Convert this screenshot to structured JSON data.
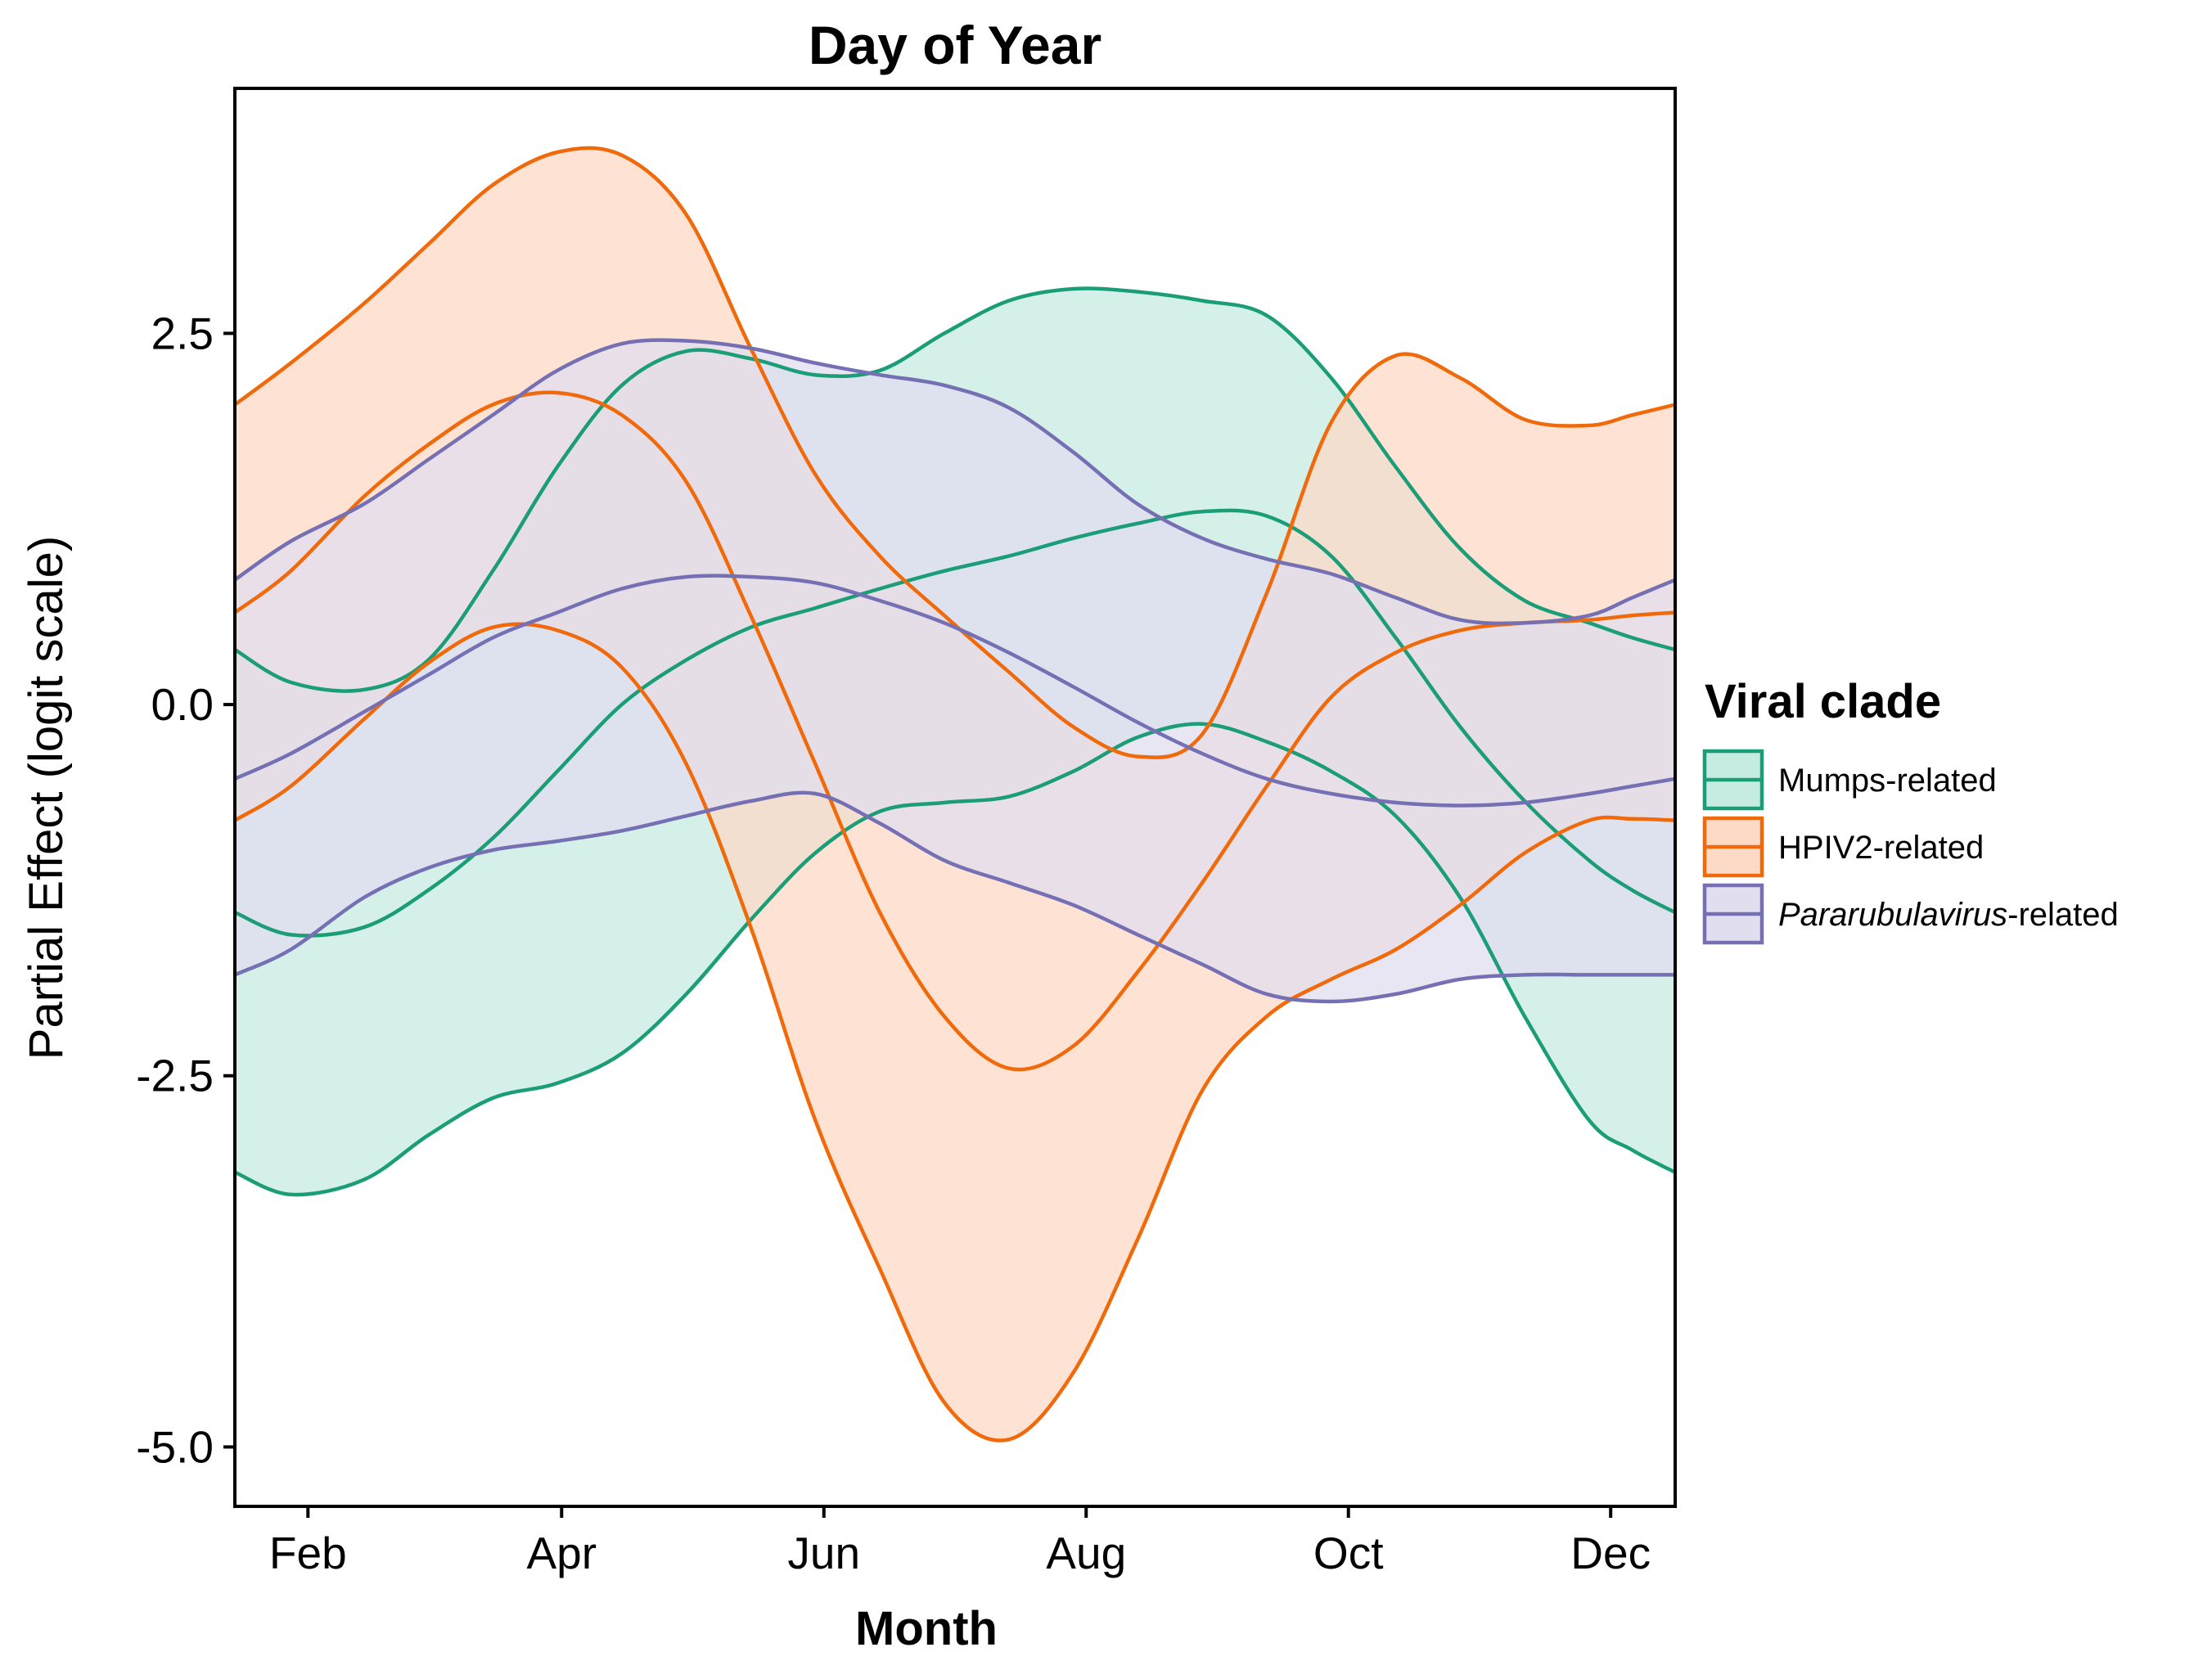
{
  "chart_data": {
    "type": "area",
    "title": "Day of Year",
    "xlabel": "Month",
    "ylabel": "Partial Effect (logit scale)",
    "xlim": [
      15,
      350
    ],
    "ylim": [
      -5.4,
      4.15
    ],
    "x_ticks": [
      {
        "value": 32,
        "label": "Feb"
      },
      {
        "value": 91,
        "label": "Apr"
      },
      {
        "value": 152,
        "label": "Jun"
      },
      {
        "value": 213,
        "label": "Aug"
      },
      {
        "value": 274,
        "label": "Oct"
      },
      {
        "value": 335,
        "label": "Dec"
      }
    ],
    "y_ticks": [
      {
        "value": 2.5,
        "label": "2.5"
      },
      {
        "value": 0.0,
        "label": "0.0"
      },
      {
        "value": -2.5,
        "label": "-2.5"
      },
      {
        "value": -5.0,
        "label": "-5.0"
      }
    ],
    "legend": {
      "title": "Viral clade",
      "position": "right",
      "entries": [
        {
          "prefix": "",
          "italic": "",
          "suffix": "Mumps-related"
        },
        {
          "prefix": "",
          "italic": "",
          "suffix": "HPIV2-related"
        },
        {
          "prefix": "",
          "italic": "Pararubulavirus",
          "suffix": "-related"
        }
      ]
    },
    "series": [
      {
        "name": "Mumps-related",
        "color": "#1B9E77",
        "fill": "#C6EBE1",
        "x": [
          15,
          28,
          45,
          60,
          75,
          90,
          105,
          120,
          135,
          150,
          165,
          180,
          195,
          210,
          225,
          240,
          255,
          270,
          285,
          300,
          315,
          330,
          340,
          350
        ],
        "upper": [
          0.37,
          0.15,
          0.1,
          0.3,
          0.9,
          1.6,
          2.15,
          2.38,
          2.33,
          2.22,
          2.25,
          2.5,
          2.72,
          2.8,
          2.78,
          2.72,
          2.62,
          2.2,
          1.6,
          1.05,
          0.7,
          0.55,
          0.45,
          0.37
        ],
        "lower": [
          -3.15,
          -3.3,
          -3.2,
          -2.9,
          -2.65,
          -2.55,
          -2.35,
          -1.95,
          -1.45,
          -1.0,
          -0.72,
          -0.66,
          -0.62,
          -0.45,
          -0.22,
          -0.13,
          -0.25,
          -0.45,
          -0.75,
          -1.3,
          -2.1,
          -2.8,
          -3.0,
          -3.15
        ],
        "estimate": [
          -1.4,
          -1.55,
          -1.5,
          -1.25,
          -0.9,
          -0.45,
          0.0,
          0.3,
          0.52,
          0.65,
          0.78,
          0.9,
          1.0,
          1.12,
          1.22,
          1.3,
          1.27,
          1.0,
          0.45,
          -0.15,
          -0.65,
          -1.05,
          -1.25,
          -1.4
        ]
      },
      {
        "name": "HPIV2-related",
        "color": "#F06A0C",
        "fill": "#FDDAC6",
        "x": [
          15,
          28,
          45,
          60,
          75,
          90,
          105,
          120,
          135,
          150,
          165,
          180,
          195,
          210,
          225,
          240,
          255,
          270,
          285,
          300,
          315,
          330,
          340,
          350
        ],
        "upper": [
          2.02,
          2.3,
          2.7,
          3.1,
          3.5,
          3.72,
          3.7,
          3.3,
          2.4,
          1.55,
          1.0,
          0.6,
          0.22,
          -0.15,
          -0.35,
          -0.2,
          0.75,
          1.9,
          2.35,
          2.2,
          1.92,
          1.88,
          1.95,
          2.02
        ],
        "lower": [
          -0.78,
          -0.55,
          -0.1,
          0.28,
          0.52,
          0.5,
          0.25,
          -0.4,
          -1.5,
          -2.8,
          -3.8,
          -4.7,
          -4.95,
          -4.5,
          -3.6,
          -2.6,
          -2.1,
          -1.85,
          -1.65,
          -1.35,
          -1.0,
          -0.78,
          -0.77,
          -0.78
        ],
        "estimate": [
          0.62,
          0.9,
          1.4,
          1.75,
          2.02,
          2.1,
          1.95,
          1.5,
          0.6,
          -0.4,
          -1.4,
          -2.1,
          -2.45,
          -2.3,
          -1.8,
          -1.2,
          -0.55,
          0.05,
          0.35,
          0.5,
          0.55,
          0.57,
          0.6,
          0.62
        ]
      },
      {
        "name": "Pararubulavirus-related",
        "color": "#7570B3",
        "fill": "#E1DEEF",
        "x": [
          15,
          28,
          45,
          60,
          75,
          90,
          105,
          120,
          135,
          150,
          165,
          180,
          195,
          210,
          225,
          240,
          255,
          270,
          285,
          300,
          315,
          330,
          340,
          350
        ],
        "upper": [
          0.84,
          1.1,
          1.35,
          1.65,
          1.95,
          2.25,
          2.43,
          2.45,
          2.4,
          2.3,
          2.22,
          2.15,
          2.0,
          1.7,
          1.35,
          1.12,
          0.98,
          0.88,
          0.72,
          0.57,
          0.55,
          0.6,
          0.72,
          0.84
        ],
        "lower": [
          -1.82,
          -1.65,
          -1.3,
          -1.1,
          -0.98,
          -0.92,
          -0.85,
          -0.75,
          -0.65,
          -0.6,
          -0.8,
          -1.05,
          -1.2,
          -1.35,
          -1.55,
          -1.75,
          -1.95,
          -2.0,
          -1.95,
          -1.85,
          -1.82,
          -1.82,
          -1.82,
          -1.82
        ],
        "estimate": [
          -0.5,
          -0.33,
          -0.05,
          0.2,
          0.45,
          0.62,
          0.78,
          0.86,
          0.86,
          0.82,
          0.7,
          0.55,
          0.35,
          0.12,
          -0.12,
          -0.33,
          -0.5,
          -0.6,
          -0.66,
          -0.68,
          -0.66,
          -0.6,
          -0.55,
          -0.5
        ]
      }
    ]
  }
}
